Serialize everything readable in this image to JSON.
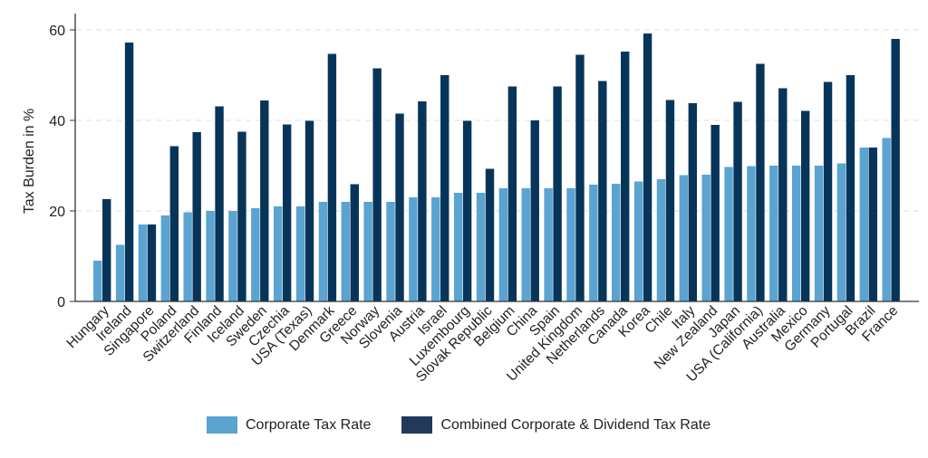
{
  "chart_data": {
    "type": "bar",
    "title": "",
    "xlabel": "",
    "ylabel": "Tax Burden in %",
    "ylim": [
      0,
      63
    ],
    "yticks": [
      0,
      20,
      40,
      60
    ],
    "grid": true,
    "legend_position": "bottom",
    "categories": [
      "Hungary",
      "Ireland",
      "Singapore",
      "Poland",
      "Switzerland",
      "Finland",
      "Iceland",
      "Sweden",
      "Czechia",
      "USA (Texas)",
      "Denmark",
      "Greece",
      "Norway",
      "Slovenia",
      "Austria",
      "Israel",
      "Luxembourg",
      "Slovak Republic",
      "Belgium",
      "China",
      "Spain",
      "United Kingdom",
      "Netherlands",
      "Canada",
      "Korea",
      "Chile",
      "Italy",
      "New Zealand",
      "Japan",
      "USA (California)",
      "Australia",
      "Mexico",
      "Germany",
      "Portugal",
      "Brazil",
      "France"
    ],
    "series": [
      {
        "name": "Corporate Tax Rate",
        "color": "#5ba3d0",
        "values": [
          9.0,
          12.5,
          17.0,
          19.0,
          19.7,
          20.0,
          20.0,
          20.6,
          21.0,
          21.0,
          22.0,
          22.0,
          22.0,
          22.0,
          23.0,
          23.0,
          24.0,
          24.0,
          25.0,
          25.0,
          25.0,
          25.0,
          25.8,
          26.0,
          26.5,
          27.0,
          27.9,
          28.0,
          29.7,
          29.9,
          30.0,
          30.0,
          30.0,
          30.5,
          34.0,
          36.1
        ]
      },
      {
        "name": "Combined Corporate & Dividend Tax Rate",
        "color": "#07355a",
        "values": [
          22.6,
          57.2,
          17.0,
          34.3,
          37.4,
          43.1,
          37.5,
          44.4,
          39.1,
          39.9,
          54.7,
          25.9,
          51.5,
          41.5,
          44.2,
          50.0,
          39.9,
          29.3,
          47.5,
          40.0,
          47.5,
          54.5,
          48.7,
          55.2,
          59.2,
          44.5,
          43.8,
          39.0,
          44.1,
          52.5,
          47.1,
          42.1,
          48.5,
          50.0,
          34.0,
          58.0
        ]
      }
    ]
  },
  "legend": {
    "items": [
      {
        "label": "Corporate Tax Rate",
        "color": "#5ba3d0"
      },
      {
        "label": "Combined Corporate & Dividend Tax Rate",
        "color": "#213a5c"
      }
    ]
  }
}
